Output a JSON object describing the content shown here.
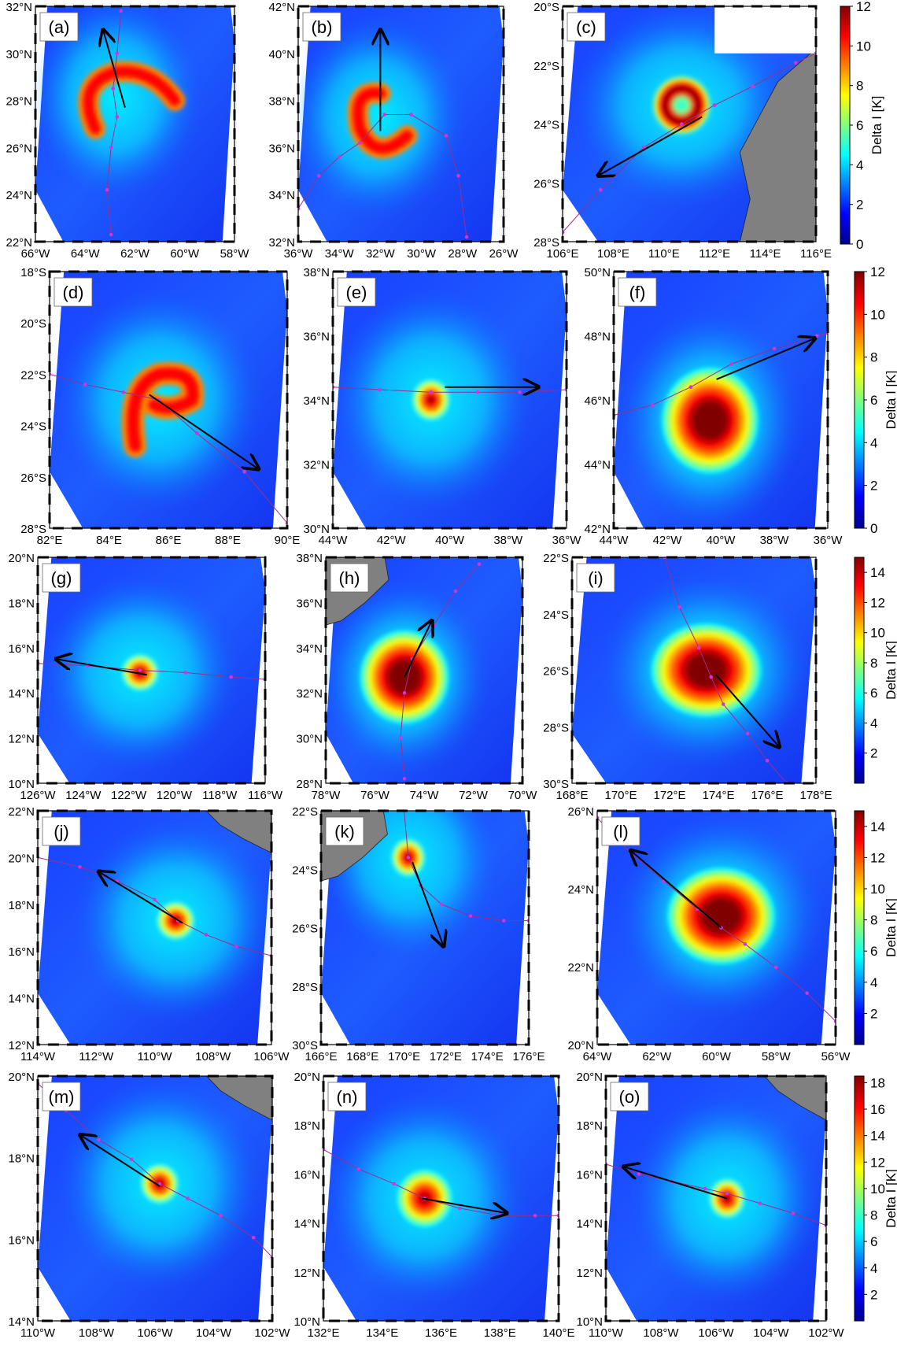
{
  "colorbar_label": "Delta I [K]",
  "colormap": [
    "#00008f",
    "#0000ff",
    "#0080ff",
    "#00ffff",
    "#80ff80",
    "#ffff00",
    "#ff8000",
    "#ff0000",
    "#800000"
  ],
  "colors": {
    "ocean_background": "#ffffff",
    "land": "#808080",
    "track": "#9b2d8c",
    "track_point": "#d633d6",
    "motion_arrow": "#000000"
  },
  "colorbars": [
    {
      "ticks": [
        "0",
        "2",
        "4",
        "6",
        "8",
        "10",
        "12"
      ],
      "vmin": 0,
      "vmax": 12
    },
    {
      "ticks": [
        "0",
        "2",
        "4",
        "6",
        "8",
        "10",
        "12"
      ],
      "vmin": 0,
      "vmax": 12
    },
    {
      "ticks": [
        "2",
        "4",
        "6",
        "8",
        "10",
        "12",
        "14"
      ],
      "vmin": 0,
      "vmax": 15
    },
    {
      "ticks": [
        "2",
        "4",
        "6",
        "8",
        "10",
        "12",
        "14"
      ],
      "vmin": 0,
      "vmax": 15
    },
    {
      "ticks": [
        "2",
        "4",
        "6",
        "8",
        "10",
        "12",
        "14",
        "16",
        "18"
      ],
      "vmin": 0,
      "vmax": 18.5
    }
  ],
  "panels": [
    {
      "label": "(a)",
      "lat": [
        "22",
        "24",
        "26",
        "28",
        "30",
        "32"
      ],
      "lat_h": "N",
      "lon": [
        "66",
        "64",
        "62",
        "60",
        "58"
      ],
      "lon_h": "W",
      "storm": "crescent",
      "land": "none",
      "track": "a"
    },
    {
      "label": "(b)",
      "lat": [
        "32",
        "34",
        "36",
        "38",
        "40",
        "42"
      ],
      "lat_h": "N",
      "lon": [
        "36",
        "34",
        "32",
        "30",
        "28",
        "26"
      ],
      "lon_h": "W",
      "storm": "spiral",
      "land": "none",
      "track": "b"
    },
    {
      "label": "(c)",
      "lat": [
        "20",
        "22",
        "24",
        "26",
        "28"
      ],
      "lat_h": "S",
      "lon": [
        "106",
        "108",
        "110",
        "112",
        "114",
        "116"
      ],
      "lon_h": "E",
      "storm": "ring",
      "land": "right",
      "track": "c"
    },
    {
      "label": "(d)",
      "lat": [
        "18",
        "20",
        "22",
        "24",
        "26",
        "28"
      ],
      "lat_h": "S",
      "lon": [
        "82",
        "84",
        "86",
        "88",
        "90"
      ],
      "lon_h": "E",
      "storm": "hook",
      "land": "none",
      "track": "d"
    },
    {
      "label": "(e)",
      "lat": [
        "30",
        "32",
        "34",
        "36",
        "38"
      ],
      "lat_h": "N",
      "lon": [
        "44",
        "42",
        "40",
        "38",
        "36"
      ],
      "lon_h": "W",
      "storm": "small",
      "land": "none",
      "track": "e"
    },
    {
      "label": "(f)",
      "lat": [
        "42",
        "44",
        "46",
        "48",
        "50"
      ],
      "lat_h": "N",
      "lon": [
        "44",
        "42",
        "40",
        "38",
        "36"
      ],
      "lon_h": "W",
      "storm": "large",
      "land": "none",
      "track": "f"
    },
    {
      "label": "(g)",
      "lat": [
        "10",
        "12",
        "14",
        "16",
        "18",
        "20"
      ],
      "lat_h": "N",
      "lon": [
        "126",
        "124",
        "122",
        "120",
        "118",
        "116"
      ],
      "lon_h": "W",
      "storm": "small",
      "land": "none",
      "track": "g"
    },
    {
      "label": "(h)",
      "lat": [
        "28",
        "30",
        "32",
        "34",
        "36",
        "38"
      ],
      "lat_h": "N",
      "lon": [
        "78",
        "76",
        "74",
        "72",
        "70"
      ],
      "lon_h": "W",
      "storm": "large",
      "land": "topleft",
      "track": "h"
    },
    {
      "label": "(i)",
      "lat": [
        "22",
        "24",
        "26",
        "28",
        "30"
      ],
      "lat_h": "S",
      "lon": [
        "168",
        "170",
        "172",
        "174",
        "176",
        "178"
      ],
      "lon_h": "E",
      "storm": "large",
      "land": "none",
      "track": "i"
    },
    {
      "label": "(j)",
      "lat": [
        "12",
        "14",
        "16",
        "18",
        "20",
        "22"
      ],
      "lat_h": "N",
      "lon": [
        "114",
        "112",
        "110",
        "108",
        "106"
      ],
      "lon_h": "W",
      "storm": "small",
      "land": "topright",
      "track": "j"
    },
    {
      "label": "(k)",
      "lat": [
        "22",
        "24",
        "26",
        "28",
        "30"
      ],
      "lat_h": "S",
      "lon": [
        "166",
        "168",
        "170",
        "172",
        "174",
        "176"
      ],
      "lon_h": "E",
      "storm": "small",
      "land": "topleft",
      "track": "k"
    },
    {
      "label": "(l)",
      "lat": [
        "20",
        "22",
        "24",
        "26"
      ],
      "lat_h": "N",
      "lon": [
        "64",
        "62",
        "60",
        "58",
        "56"
      ],
      "lon_h": "W",
      "storm": "large",
      "land": "none",
      "track": "l"
    },
    {
      "label": "(m)",
      "lat": [
        "14",
        "16",
        "18",
        "20"
      ],
      "lat_h": "N",
      "lon": [
        "110",
        "108",
        "106",
        "104",
        "102"
      ],
      "lon_h": "W",
      "storm": "small",
      "land": "topright",
      "track": "m"
    },
    {
      "label": "(n)",
      "lat": [
        "10",
        "12",
        "14",
        "16",
        "18",
        "20"
      ],
      "lat_h": "N",
      "lon": [
        "132",
        "134",
        "136",
        "138",
        "140"
      ],
      "lon_h": "E",
      "storm": "medium",
      "land": "none",
      "track": "n"
    },
    {
      "label": "(o)",
      "lat": [
        "10",
        "12",
        "14",
        "16",
        "18",
        "20"
      ],
      "lat_h": "N",
      "lon": [
        "110",
        "108",
        "106",
        "104",
        "102"
      ],
      "lon_h": "W",
      "storm": "small",
      "land": "topright",
      "track": "o"
    }
  ]
}
